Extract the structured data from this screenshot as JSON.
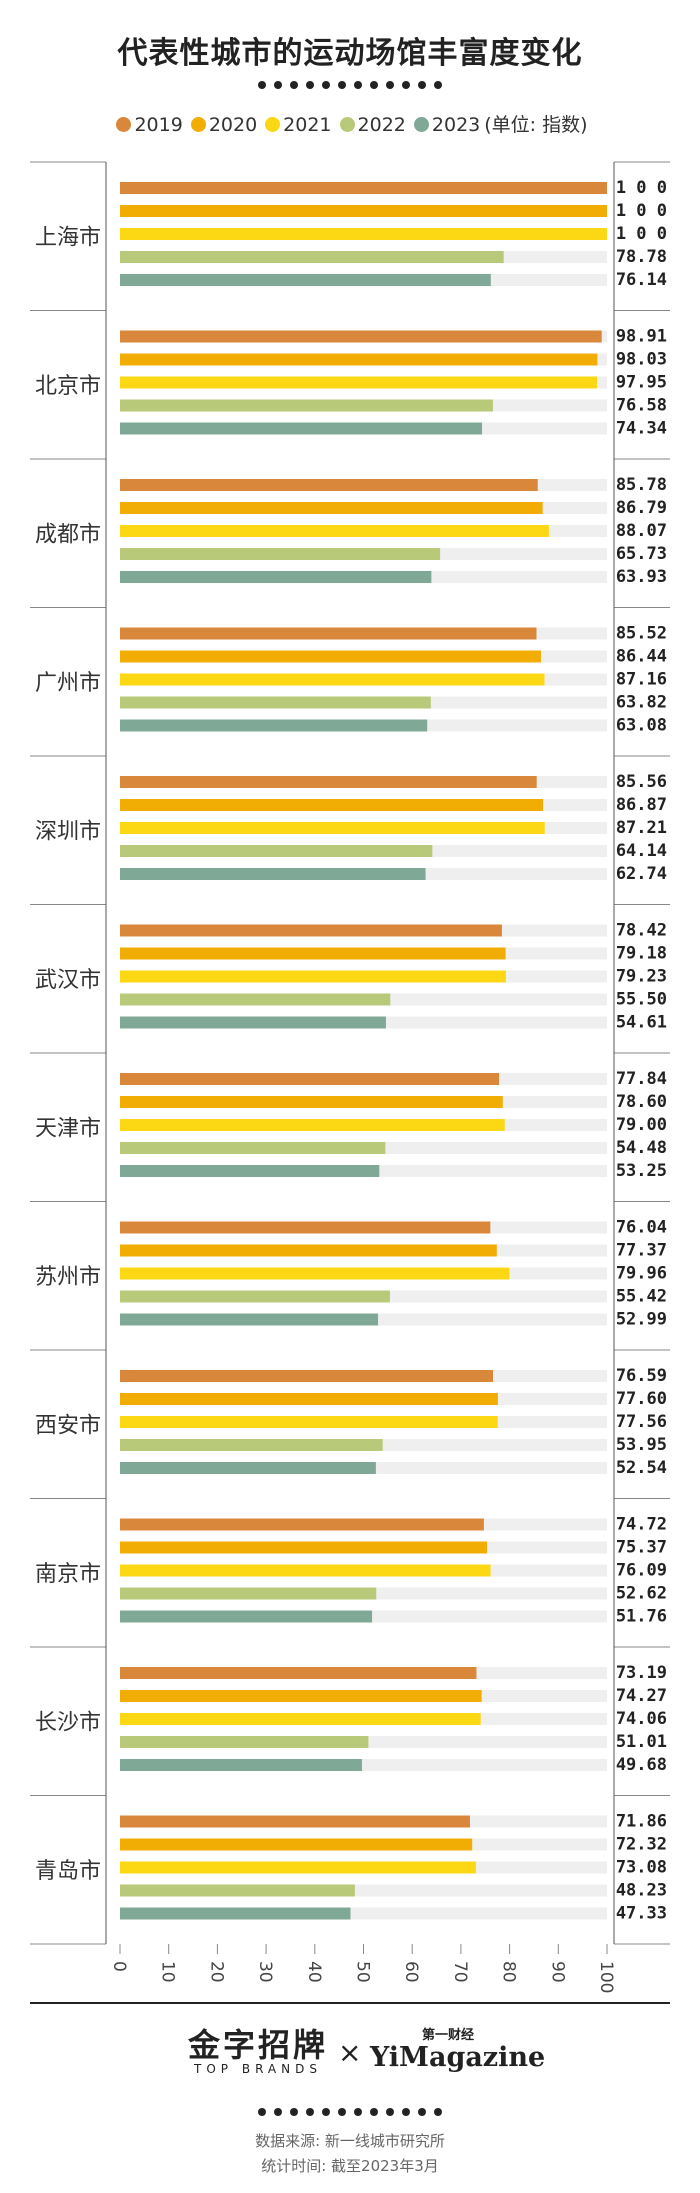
{
  "title": "代表性城市的运动场馆丰富度变化",
  "legend": {
    "items": [
      {
        "label": "2019",
        "color": "#d9873a"
      },
      {
        "label": "2020",
        "color": "#f2ad05"
      },
      {
        "label": "2021",
        "color": "#fcd714"
      },
      {
        "label": "2022",
        "color": "#b9c97a"
      },
      {
        "label": "2023",
        "color": "#80a896"
      }
    ],
    "unit": "(单位: 指数)"
  },
  "chart_data": {
    "type": "bar",
    "orientation": "horizontal",
    "title": "代表性城市的运动场馆丰富度变化",
    "unit": "指数",
    "categories": [
      "上海市",
      "北京市",
      "成都市",
      "广州市",
      "深圳市",
      "武汉市",
      "天津市",
      "苏州市",
      "西安市",
      "南京市",
      "长沙市",
      "青岛市"
    ],
    "series": [
      {
        "name": "2019",
        "color": "#d9873a",
        "values": [
          100,
          98.91,
          85.78,
          85.52,
          85.56,
          78.42,
          77.84,
          76.04,
          76.59,
          74.72,
          73.19,
          71.86
        ]
      },
      {
        "name": "2020",
        "color": "#f2ad05",
        "values": [
          100,
          98.03,
          86.79,
          86.44,
          86.87,
          79.18,
          78.6,
          77.37,
          77.6,
          75.37,
          74.27,
          72.32
        ]
      },
      {
        "name": "2021",
        "color": "#fcd714",
        "values": [
          100,
          97.95,
          88.07,
          87.16,
          87.21,
          79.23,
          79.0,
          79.96,
          77.56,
          76.09,
          74.06,
          73.08
        ]
      },
      {
        "name": "2022",
        "color": "#b9c97a",
        "values": [
          78.78,
          76.58,
          65.73,
          63.82,
          64.14,
          55.5,
          54.48,
          55.42,
          53.95,
          52.62,
          51.01,
          48.23
        ]
      },
      {
        "name": "2023",
        "color": "#80a896",
        "values": [
          76.14,
          74.34,
          63.93,
          63.08,
          62.74,
          54.61,
          53.25,
          52.99,
          52.54,
          51.76,
          49.68,
          47.33
        ]
      }
    ],
    "value_labels": [
      [
        "1 0 0",
        "1 0 0",
        "1 0 0",
        "78.78",
        "76.14"
      ],
      [
        "98.91",
        "98.03",
        "97.95",
        "76.58",
        "74.34"
      ],
      [
        "85.78",
        "86.79",
        "88.07",
        "65.73",
        "63.93"
      ],
      [
        "85.52",
        "86.44",
        "87.16",
        "63.82",
        "63.08"
      ],
      [
        "85.56",
        "86.87",
        "87.21",
        "64.14",
        "62.74"
      ],
      [
        "78.42",
        "79.18",
        "79.23",
        "55.50",
        "54.61"
      ],
      [
        "77.84",
        "78.60",
        "79.00",
        "54.48",
        "53.25"
      ],
      [
        "76.04",
        "77.37",
        "79.96",
        "55.42",
        "52.99"
      ],
      [
        "76.59",
        "77.60",
        "77.56",
        "53.95",
        "52.54"
      ],
      [
        "74.72",
        "75.37",
        "76.09",
        "52.62",
        "51.76"
      ],
      [
        "73.19",
        "74.27",
        "74.06",
        "51.01",
        "49.68"
      ],
      [
        "71.86",
        "72.32",
        "73.08",
        "48.23",
        "47.33"
      ]
    ],
    "xlim": [
      0,
      100
    ],
    "xticks": [
      0,
      10,
      20,
      30,
      40,
      50,
      60,
      70,
      80,
      90,
      100
    ],
    "xtick_labels": [
      "0",
      "10",
      "20",
      "30",
      "40",
      "50",
      "60",
      "70",
      "80",
      "90",
      "100"
    ],
    "track_color": "#efefef"
  },
  "footer": {
    "logo_left_cn": "金字招牌",
    "logo_left_en": "TOP BRANDS",
    "times": "×",
    "logo_right_cn": "第一财经",
    "logo_right_en": "YiMagazine",
    "source": "数据来源: 新一线城市研究所",
    "stat_time": "统计时间: 截至2023年3月"
  }
}
